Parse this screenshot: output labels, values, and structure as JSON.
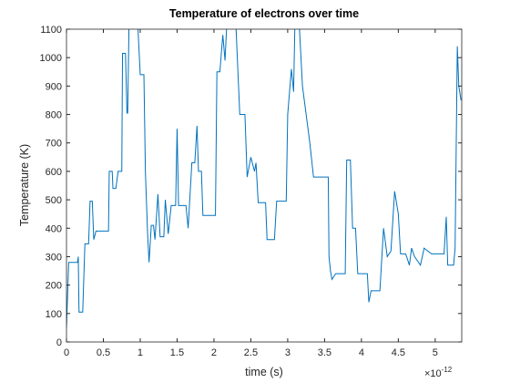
{
  "chart_data": {
    "type": "line",
    "title": "Temperature of electrons over time",
    "xlabel": "time (s)",
    "ylabel": "Temperature (K)",
    "x_multiplier": "×10",
    "x_exponent": "-12",
    "color": "#0072bd",
    "xlim": [
      0,
      5.36
    ],
    "ylim": [
      0,
      1100
    ],
    "xticks": [
      0,
      0.5,
      1,
      1.5,
      2,
      2.5,
      3,
      3.5,
      4,
      4.5,
      5
    ],
    "yticks": [
      0,
      100,
      200,
      300,
      400,
      500,
      600,
      700,
      800,
      900,
      1000,
      1100
    ],
    "x": [
      0,
      0.03,
      0.15,
      0.16,
      0.17,
      0.22,
      0.25,
      0.3,
      0.32,
      0.35,
      0.37,
      0.4,
      0.57,
      0.58,
      0.62,
      0.63,
      0.67,
      0.7,
      0.75,
      0.76,
      0.8,
      0.82,
      0.83,
      0.85,
      0.95,
      0.97,
      1.0,
      1.05,
      1.07,
      1.1,
      1.12,
      1.15,
      1.18,
      1.2,
      1.24,
      1.27,
      1.32,
      1.34,
      1.38,
      1.42,
      1.48,
      1.5,
      1.52,
      1.62,
      1.65,
      1.7,
      1.74,
      1.77,
      1.79,
      1.83,
      1.85,
      2.02,
      2.04,
      2.08,
      2.12,
      2.15,
      2.18,
      2.25,
      2.3,
      2.35,
      2.42,
      2.45,
      2.5,
      2.55,
      2.57,
      2.6,
      2.7,
      2.72,
      2.82,
      2.85,
      2.98,
      3.0,
      3.05,
      3.08,
      3.1,
      3.15,
      3.2,
      3.3,
      3.35,
      3.55,
      3.56,
      3.58,
      3.6,
      3.65,
      3.78,
      3.8,
      3.85,
      3.88,
      3.92,
      3.95,
      4.08,
      4.1,
      4.13,
      4.25,
      4.3,
      4.35,
      4.4,
      4.45,
      4.5,
      4.53,
      4.6,
      4.65,
      4.68,
      4.72,
      4.8,
      4.85,
      4.95,
      5.12,
      5.15,
      5.17,
      5.25,
      5.27,
      5.3,
      5.32,
      5.35
    ],
    "values": [
      50,
      280,
      280,
      300,
      105,
      105,
      345,
      345,
      495,
      495,
      360,
      390,
      390,
      600,
      600,
      540,
      540,
      600,
      600,
      1015,
      1015,
      805,
      805,
      1150,
      1150,
      1100,
      940,
      940,
      600,
      380,
      280,
      410,
      410,
      360,
      520,
      370,
      370,
      500,
      380,
      480,
      480,
      750,
      480,
      480,
      400,
      630,
      630,
      760,
      600,
      600,
      445,
      445,
      950,
      950,
      1080,
      990,
      1150,
      1150,
      1100,
      800,
      800,
      580,
      650,
      600,
      630,
      490,
      490,
      360,
      360,
      495,
      495,
      800,
      960,
      880,
      1150,
      1150,
      900,
      700,
      580,
      580,
      300,
      250,
      220,
      240,
      240,
      640,
      640,
      400,
      400,
      240,
      240,
      140,
      180,
      180,
      400,
      300,
      320,
      530,
      450,
      310,
      310,
      270,
      330,
      300,
      270,
      330,
      310,
      310,
      440,
      270,
      270,
      330,
      1040,
      900,
      850
    ]
  }
}
